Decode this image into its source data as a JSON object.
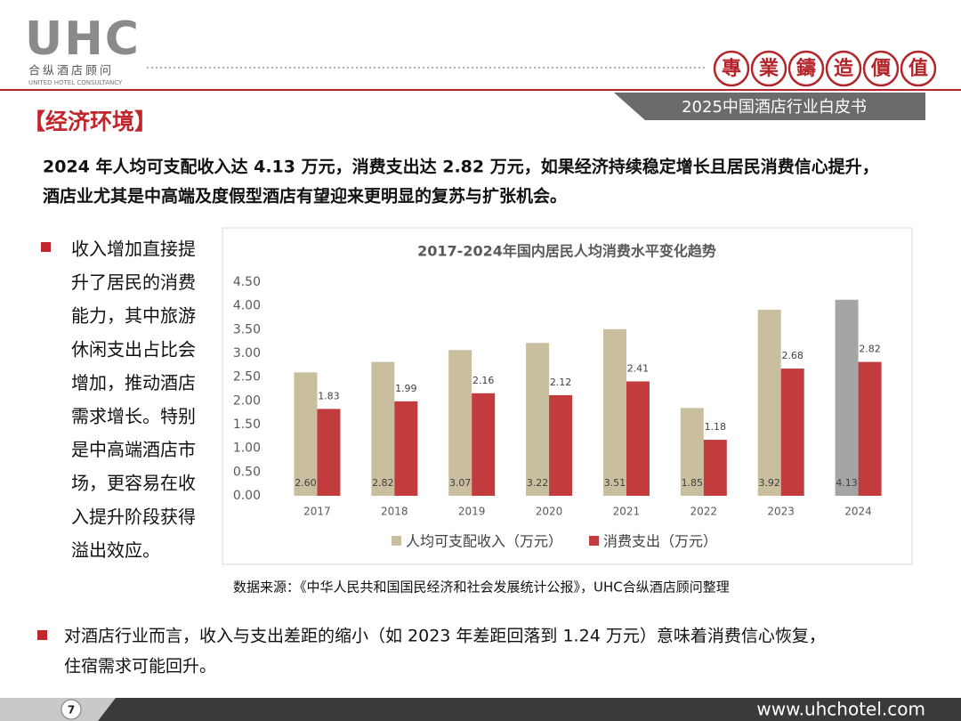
{
  "header": {
    "logo": "UHC",
    "logo_cn": "合纵酒店顾问",
    "logo_en": "UNITED HOTEL CONSULTANCY",
    "motto": [
      "專",
      "業",
      "鑄",
      "造",
      "價",
      "值"
    ],
    "report": "2025中国酒店行业白皮书"
  },
  "section_title": "【经济环境】",
  "summary": [
    "2024 年人均可支配收入达 4.13 万元，消费支出达 2.82 万元，如果经济持续稳定增长且居民消费信心提升，",
    "酒店业尤其是中高端及度假型酒店有望迎来更明显的复苏与扩张机会。"
  ],
  "bullet_left": [
    "收入增加直接提",
    "升了居民的消费",
    "能力，其中旅游",
    "休闲支出占比会",
    "增加，推动酒店",
    "需求增长。特别",
    "是中高端酒店市",
    "场，更容易在收",
    "入提升阶段获得",
    "溢出效应。"
  ],
  "chart_data": {
    "type": "bar",
    "title": "2017-2024年国内居民人均消费水平变化趋势",
    "categories": [
      "2017",
      "2018",
      "2019",
      "2020",
      "2021",
      "2022",
      "2023",
      "2024"
    ],
    "series": [
      {
        "name": "人均可支配收入（万元）",
        "color": "#c9bf9f",
        "colors": [
          "#c9bf9f",
          "#c9bf9f",
          "#c9bf9f",
          "#c9bf9f",
          "#c9bf9f",
          "#c9bf9f",
          "#c9bf9f",
          "#a5a5a5"
        ],
        "values": [
          2.6,
          2.82,
          3.07,
          3.22,
          3.51,
          1.85,
          3.92,
          4.13
        ],
        "value_labels": [
          "2.60",
          "2.82",
          "3.07",
          "3.22",
          "3.51",
          "1.85",
          "3.92",
          "4.13"
        ]
      },
      {
        "name": "消费支出（万元）",
        "color": "#c23b3d",
        "values": [
          1.83,
          1.99,
          2.16,
          2.12,
          2.41,
          1.18,
          2.68,
          2.82
        ],
        "value_labels": [
          "1.83",
          "1.99",
          "2.16",
          "2.12",
          "2.41",
          "1.18",
          "2.68",
          "2.82"
        ]
      }
    ],
    "ylim": [
      0,
      4.5
    ],
    "yticks": [
      {
        "value": 0,
        "label": "0.00"
      },
      {
        "value": 0.5,
        "label": "0.50"
      },
      {
        "value": 1,
        "label": "1.00"
      },
      {
        "value": 1.5,
        "label": "1.50"
      },
      {
        "value": 2,
        "label": "2.00"
      },
      {
        "value": 2.5,
        "label": "2.50"
      },
      {
        "value": 3,
        "label": "3.00"
      },
      {
        "value": 3.5,
        "label": "3.50"
      },
      {
        "value": 4,
        "label": "4.00"
      },
      {
        "value": 4.5,
        "label": "4.50"
      }
    ],
    "grid": false,
    "legend": "bottom"
  },
  "source": "数据来源：《中华人民共和国国民经济和社会发展统计公报》，UHC合纵酒店顾问整理",
  "bullet_bottom": [
    "对酒店行业而言，收入与支出差距的缩小（如 2023 年差距回落到 1.24 万元）意味着消费信心恢复，",
    "住宿需求可能回升。"
  ],
  "footer": {
    "page": 7,
    "website": "www.uhchotel.com"
  }
}
